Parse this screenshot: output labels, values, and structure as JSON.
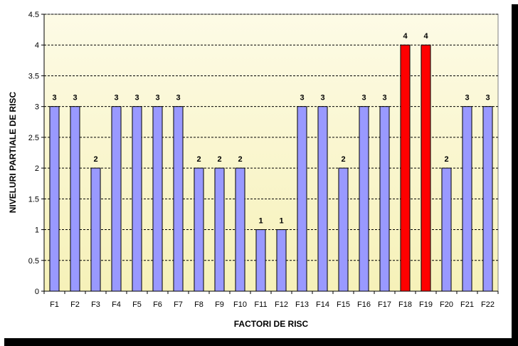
{
  "chart_data": {
    "type": "bar",
    "title": "",
    "xlabel": "FACTORI DE RISC",
    "ylabel": "NIVELURI PARTIALE DE RISC",
    "categories": [
      "F1",
      "F2",
      "F3",
      "F4",
      "F5",
      "F6",
      "F7",
      "F8",
      "F9",
      "F10",
      "F11",
      "F12",
      "F13",
      "F14",
      "F15",
      "F16",
      "F17",
      "F18",
      "F19",
      "F20",
      "F21",
      "F22"
    ],
    "values": [
      3,
      3,
      2,
      3,
      3,
      3,
      3,
      2,
      2,
      2,
      1,
      1,
      3,
      3,
      2,
      3,
      3,
      4,
      4,
      2,
      3,
      3
    ],
    "ylim": [
      0,
      4.5
    ],
    "yticks": [
      0,
      0.5,
      1,
      1.5,
      2,
      2.5,
      3,
      3.5,
      4,
      4.5
    ],
    "ytick_labels": [
      "0",
      "0.5",
      "1",
      "1.5",
      "2",
      "2.5",
      "3",
      "3.5",
      "4",
      "4.5"
    ],
    "grid": true,
    "data_labels": true,
    "colors": {
      "bar": "#9999ff",
      "bar_highlight": "#ff0000",
      "bar_border": "#000000",
      "plot_bg_top": "#fdfbe6",
      "plot_bg_bottom": "#f6f1b8",
      "frame": "#000000"
    },
    "highlighted": [
      "F18",
      "F19"
    ]
  }
}
